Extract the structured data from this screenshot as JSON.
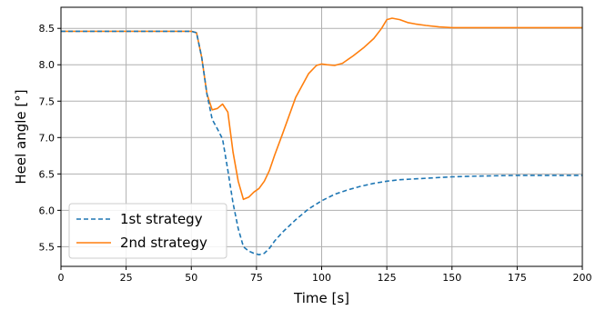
{
  "chart_data": {
    "type": "line",
    "title": "",
    "xlabel": "Time [s]",
    "ylabel": "Heel angle [°]",
    "xlim": [
      0,
      200
    ],
    "ylim": [
      5.23,
      8.79
    ],
    "xticks": [
      0,
      25,
      50,
      75,
      100,
      125,
      150,
      175,
      200
    ],
    "yticks": [
      5.5,
      6.0,
      6.5,
      7.0,
      7.5,
      8.0,
      8.5
    ],
    "xtick_labels": [
      "0",
      "25",
      "50",
      "75",
      "100",
      "125",
      "150",
      "175",
      "200"
    ],
    "ytick_labels": [
      "5.5",
      "6.0",
      "6.5",
      "7.0",
      "7.5",
      "8.0",
      "8.5"
    ],
    "grid": true,
    "legend_position": "lower-left",
    "series": [
      {
        "name": "1st strategy",
        "color": "#1f77b4",
        "style": "dashed",
        "points": [
          [
            0,
            8.46
          ],
          [
            50,
            8.46
          ],
          [
            52,
            8.44
          ],
          [
            54,
            8.1
          ],
          [
            56,
            7.6
          ],
          [
            58,
            7.25
          ],
          [
            60,
            7.12
          ],
          [
            62,
            6.98
          ],
          [
            64,
            6.55
          ],
          [
            66,
            6.1
          ],
          [
            68,
            5.75
          ],
          [
            70,
            5.5
          ],
          [
            72,
            5.44
          ],
          [
            74,
            5.41
          ],
          [
            76,
            5.39
          ],
          [
            78,
            5.41
          ],
          [
            80,
            5.48
          ],
          [
            82,
            5.58
          ],
          [
            85,
            5.7
          ],
          [
            90,
            5.87
          ],
          [
            95,
            6.02
          ],
          [
            100,
            6.13
          ],
          [
            105,
            6.22
          ],
          [
            110,
            6.28
          ],
          [
            115,
            6.33
          ],
          [
            120,
            6.37
          ],
          [
            125,
            6.4
          ],
          [
            130,
            6.42
          ],
          [
            140,
            6.44
          ],
          [
            150,
            6.46
          ],
          [
            160,
            6.47
          ],
          [
            175,
            6.48
          ],
          [
            200,
            6.48
          ]
        ]
      },
      {
        "name": "2nd strategy",
        "color": "#ff7f0e",
        "style": "solid",
        "points": [
          [
            0,
            8.46
          ],
          [
            50,
            8.46
          ],
          [
            52,
            8.44
          ],
          [
            54,
            8.1
          ],
          [
            56,
            7.6
          ],
          [
            58,
            7.38
          ],
          [
            60,
            7.4
          ],
          [
            62,
            7.46
          ],
          [
            64,
            7.35
          ],
          [
            66,
            6.8
          ],
          [
            68,
            6.4
          ],
          [
            70,
            6.15
          ],
          [
            72,
            6.18
          ],
          [
            74,
            6.25
          ],
          [
            76,
            6.3
          ],
          [
            78,
            6.4
          ],
          [
            80,
            6.55
          ],
          [
            82,
            6.76
          ],
          [
            85,
            7.05
          ],
          [
            90,
            7.55
          ],
          [
            95,
            7.88
          ],
          [
            98,
            7.99
          ],
          [
            100,
            8.01
          ],
          [
            102,
            8.0
          ],
          [
            105,
            7.99
          ],
          [
            108,
            8.02
          ],
          [
            112,
            8.12
          ],
          [
            116,
            8.23
          ],
          [
            120,
            8.36
          ],
          [
            123,
            8.5
          ],
          [
            125,
            8.62
          ],
          [
            127,
            8.64
          ],
          [
            130,
            8.62
          ],
          [
            133,
            8.58
          ],
          [
            136,
            8.56
          ],
          [
            140,
            8.54
          ],
          [
            145,
            8.52
          ],
          [
            150,
            8.51
          ],
          [
            160,
            8.51
          ],
          [
            200,
            8.51
          ]
        ]
      }
    ]
  }
}
